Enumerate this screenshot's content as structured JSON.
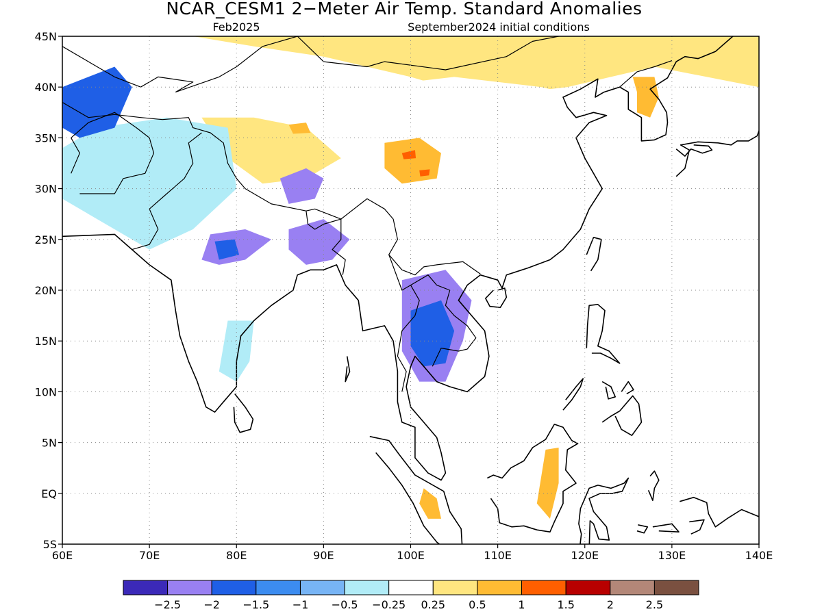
{
  "title": "NCAR_CESM1 2−Meter Air Temp. Standard Anomalies",
  "subtitle_left": "Feb2025",
  "subtitle_right": "September2024 initial conditions",
  "map": {
    "lon_range": [
      60,
      140
    ],
    "lat_range": [
      -5,
      45
    ],
    "lon_ticks": [
      {
        "v": 60,
        "label": "60E"
      },
      {
        "v": 70,
        "label": "70E"
      },
      {
        "v": 80,
        "label": "80E"
      },
      {
        "v": 90,
        "label": "90E"
      },
      {
        "v": 100,
        "label": "100E"
      },
      {
        "v": 110,
        "label": "110E"
      },
      {
        "v": 120,
        "label": "120E"
      },
      {
        "v": 130,
        "label": "130E"
      },
      {
        "v": 140,
        "label": "140E"
      }
    ],
    "lat_ticks": [
      {
        "v": 45,
        "label": "45N"
      },
      {
        "v": 40,
        "label": "40N"
      },
      {
        "v": 35,
        "label": "35N"
      },
      {
        "v": 30,
        "label": "30N"
      },
      {
        "v": 25,
        "label": "25N"
      },
      {
        "v": 20,
        "label": "20N"
      },
      {
        "v": 15,
        "label": "15N"
      },
      {
        "v": 10,
        "label": "10N"
      },
      {
        "v": 5,
        "label": "5N"
      },
      {
        "v": 0,
        "label": "EQ"
      },
      {
        "v": -5,
        "label": "5S"
      }
    ],
    "grid": "dotted",
    "anomaly_regions": [
      {
        "name": "mongolia-warm",
        "level": 7,
        "poly": [
          [
            75,
            45
          ],
          [
            140,
            45
          ],
          [
            140,
            40
          ],
          [
            128,
            42
          ],
          [
            118,
            40
          ],
          [
            108,
            39
          ],
          [
            100,
            41
          ],
          [
            90,
            43
          ],
          [
            82,
            44
          ]
        ]
      },
      {
        "name": "china-warm",
        "level": 6,
        "poly": [
          [
            88,
            38
          ],
          [
            95,
            40
          ],
          [
            105,
            41
          ],
          [
            115,
            40
          ],
          [
            120,
            39
          ],
          [
            122,
            31
          ],
          [
            120,
            26
          ],
          [
            115,
            23
          ],
          [
            108,
            22
          ],
          [
            103,
            22
          ],
          [
            100,
            25
          ],
          [
            97,
            28
          ],
          [
            92,
            30
          ],
          [
            86,
            33
          ],
          [
            80,
            34
          ]
        ]
      },
      {
        "name": "tibet-hot",
        "level": 8,
        "poly": [
          [
            97,
            34.5
          ],
          [
            101,
            35
          ],
          [
            103.5,
            33.5
          ],
          [
            103,
            31
          ],
          [
            99,
            30.5
          ],
          [
            97,
            32
          ]
        ]
      },
      {
        "name": "tibet-hot-gray",
        "level": 9,
        "poly": [
          [
            99,
            33.5
          ],
          [
            100.5,
            33.8
          ],
          [
            100.6,
            33
          ],
          [
            99.2,
            32.9
          ]
        ]
      },
      {
        "name": "tibet-hot-gray-2",
        "level": 9,
        "poly": [
          [
            101,
            31.8
          ],
          [
            102.2,
            31.9
          ],
          [
            102.1,
            31.3
          ],
          [
            101.1,
            31.2
          ]
        ]
      },
      {
        "name": "himalaya-warm",
        "level": 7,
        "poly": [
          [
            76,
            37
          ],
          [
            82,
            37
          ],
          [
            88,
            36
          ],
          [
            92,
            33
          ],
          [
            88,
            31
          ],
          [
            83,
            30.5
          ],
          [
            79,
            33
          ]
        ]
      },
      {
        "name": "kashmir-hot",
        "level": 8,
        "poly": [
          [
            86,
            36.3
          ],
          [
            88,
            36.5
          ],
          [
            88.5,
            35.5
          ],
          [
            86.5,
            35.4
          ]
        ]
      },
      {
        "name": "afghan-warm",
        "level": 5,
        "poly": [
          [
            64,
            36
          ],
          [
            72,
            37
          ],
          [
            79,
            36
          ],
          [
            80,
            30
          ],
          [
            75,
            26
          ],
          [
            70,
            24
          ],
          [
            64,
            27
          ],
          [
            60,
            29
          ],
          [
            60,
            34
          ]
        ]
      },
      {
        "name": "tibet-cool",
        "level": 1,
        "poly": [
          [
            85,
            31
          ],
          [
            88,
            32
          ],
          [
            90,
            31
          ],
          [
            89,
            29
          ],
          [
            86,
            28.5
          ]
        ]
      },
      {
        "name": "central-asia-cool",
        "level": 2,
        "poly": [
          [
            60,
            40
          ],
          [
            66,
            42
          ],
          [
            68,
            40
          ],
          [
            66,
            36
          ],
          [
            62,
            35
          ],
          [
            60,
            36
          ]
        ]
      },
      {
        "name": "north-india-cool",
        "level": 1,
        "poly": [
          [
            77,
            25.5
          ],
          [
            81,
            26
          ],
          [
            84,
            25
          ],
          [
            81,
            23
          ],
          [
            78,
            22.5
          ],
          [
            76,
            23
          ]
        ]
      },
      {
        "name": "central-india-cooler",
        "level": 2,
        "poly": [
          [
            77.5,
            24.8
          ],
          [
            79.8,
            25
          ],
          [
            80.3,
            23.5
          ],
          [
            78,
            23
          ]
        ]
      },
      {
        "name": "bangladesh-cool",
        "level": 1,
        "poly": [
          [
            86,
            26
          ],
          [
            90,
            27
          ],
          [
            93,
            25
          ],
          [
            91,
            23
          ],
          [
            88,
            22.5
          ],
          [
            86,
            24
          ]
        ]
      },
      {
        "name": "west-india-warm",
        "level": 6,
        "poly": [
          [
            73,
            19
          ],
          [
            75.5,
            19.5
          ],
          [
            77,
            16
          ],
          [
            78,
            13
          ],
          [
            79,
            11
          ],
          [
            77.5,
            9.5
          ],
          [
            75.5,
            12
          ],
          [
            74,
            15
          ]
        ]
      },
      {
        "name": "east-india-warm",
        "level": 5,
        "poly": [
          [
            79,
            17
          ],
          [
            82,
            17
          ],
          [
            81.5,
            13
          ],
          [
            80,
            11
          ],
          [
            78,
            12
          ]
        ]
      },
      {
        "name": "myanmar-warm",
        "level": 6,
        "poly": [
          [
            93,
            26
          ],
          [
            98,
            28
          ],
          [
            100,
            26
          ],
          [
            99,
            20
          ],
          [
            97,
            16
          ],
          [
            95,
            18
          ],
          [
            94,
            22
          ]
        ]
      },
      {
        "name": "indochina-cool",
        "level": 1,
        "poly": [
          [
            99,
            21
          ],
          [
            104,
            22
          ],
          [
            107,
            19
          ],
          [
            106,
            15
          ],
          [
            104,
            11
          ],
          [
            101,
            11
          ],
          [
            99,
            14
          ]
        ]
      },
      {
        "name": "thailand-cooler",
        "level": 2,
        "poly": [
          [
            100,
            18
          ],
          [
            103.5,
            19
          ],
          [
            105,
            16
          ],
          [
            104,
            12.8
          ],
          [
            101.5,
            12.5
          ],
          [
            100,
            14.5
          ]
        ]
      },
      {
        "name": "borneo-warm",
        "level": 6,
        "poly": [
          [
            109.5,
            1.5
          ],
          [
            112,
            2.5
          ],
          [
            115,
            4
          ],
          [
            117,
            4.5
          ],
          [
            117.5,
            2
          ],
          [
            116,
            -2
          ],
          [
            114,
            -3
          ],
          [
            111,
            -3
          ],
          [
            109.5,
            -1
          ]
        ]
      },
      {
        "name": "borneo-hot",
        "level": 8,
        "poly": [
          [
            115.5,
            4.3
          ],
          [
            117,
            4.5
          ],
          [
            117,
            1
          ],
          [
            116,
            -2.5
          ],
          [
            114.5,
            -1
          ]
        ]
      },
      {
        "name": "sumatra-warm",
        "level": 6,
        "poly": [
          [
            98,
            2
          ],
          [
            101,
            1
          ],
          [
            103,
            -1
          ],
          [
            104.5,
            -3
          ],
          [
            105.5,
            -5
          ],
          [
            104,
            -5
          ],
          [
            101,
            -2
          ],
          [
            98,
            0
          ]
        ]
      },
      {
        "name": "sumatra-hot",
        "level": 8,
        "poly": [
          [
            101.5,
            0.5
          ],
          [
            103,
            -0.5
          ],
          [
            103.5,
            -2.5
          ],
          [
            102,
            -2.5
          ],
          [
            101,
            -1
          ]
        ]
      },
      {
        "name": "korea-hot",
        "level": 8,
        "poly": [
          [
            125.5,
            41
          ],
          [
            128,
            41
          ],
          [
            128.5,
            39
          ],
          [
            127.5,
            37
          ],
          [
            126,
            37.5
          ],
          [
            126,
            39.5
          ]
        ]
      },
      {
        "name": "korea-warm",
        "level": 6,
        "poly": [
          [
            126,
            37
          ],
          [
            129.5,
            37
          ],
          [
            129,
            35
          ],
          [
            126.5,
            34.5
          ]
        ]
      },
      {
        "name": "japan-warm",
        "level": 6,
        "poly": [
          [
            136,
            35
          ],
          [
            140,
            37
          ],
          [
            140,
            34
          ],
          [
            137,
            34
          ]
        ]
      }
    ],
    "colorbar": {
      "colors": [
        "#3b29b8",
        "#9980f2",
        "#1f5fe6",
        "#3c8cf0",
        "#77b4f5",
        "#b1ecf7",
        "#ffffff",
        "#ffe680",
        "#ffbb33",
        "#ff5f00",
        "#b80000",
        "#b38778",
        "#7a5040"
      ],
      "labels": [
        "−2.5",
        "−2",
        "−1.5",
        "−1",
        "−0.5",
        "−0.25",
        "0.25",
        "0.5",
        "1",
        "1.5",
        "2",
        "2.5"
      ]
    }
  }
}
